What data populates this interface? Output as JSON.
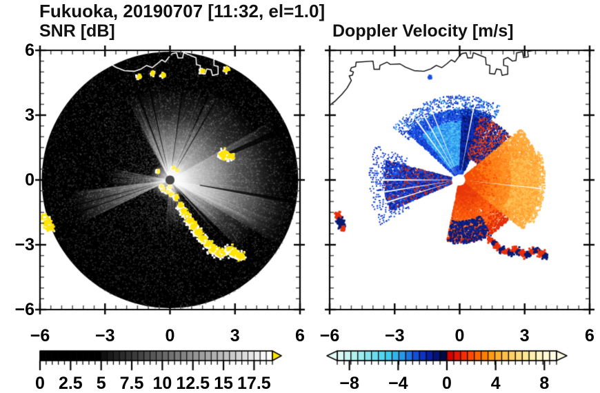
{
  "title": "Fukuoka, 20190707 [11:32, el=1.0]",
  "panels": {
    "snr": {
      "subtitle": "SNR [dB]"
    },
    "doppler": {
      "subtitle": "Doppler Velocity [m/s]"
    }
  },
  "coastline_xy": [
    [
      -6,
      3.45
    ],
    [
      -5.75,
      3.65
    ],
    [
      -5.45,
      3.95
    ],
    [
      -5.2,
      4.25
    ],
    [
      -5.0,
      4.6
    ],
    [
      -5.1,
      4.82
    ],
    [
      -4.95,
      4.85
    ],
    [
      -4.9,
      5.0
    ],
    [
      -5.05,
      5.05
    ],
    [
      -5.0,
      5.2
    ],
    [
      -4.8,
      5.25
    ],
    [
      -4.78,
      5.45
    ],
    [
      -4.0,
      5.5
    ],
    [
      -3.95,
      5.12
    ],
    [
      -3.7,
      5.12
    ],
    [
      -3.68,
      5.3
    ],
    [
      -3.35,
      5.45
    ],
    [
      -3.2,
      5.35
    ],
    [
      -2.75,
      5.37
    ],
    [
      -2.5,
      5.22
    ],
    [
      -2.1,
      5.06
    ],
    [
      -1.65,
      5.03
    ],
    [
      -1.33,
      5.14
    ],
    [
      -1.08,
      5.3
    ],
    [
      -0.82,
      5.2
    ],
    [
      -0.6,
      5.37
    ],
    [
      -0.38,
      5.56
    ],
    [
      -0.22,
      5.46
    ],
    [
      -0.05,
      5.69
    ],
    [
      0.1,
      5.85
    ],
    [
      0.3,
      5.89
    ],
    [
      0.37,
      5.65
    ],
    [
      0.58,
      5.65
    ],
    [
      0.63,
      5.89
    ],
    [
      0.85,
      5.8
    ],
    [
      1.2,
      5.66
    ],
    [
      1.22,
      5.34
    ],
    [
      1.4,
      5.3
    ],
    [
      1.38,
      4.93
    ],
    [
      1.62,
      4.9
    ],
    [
      1.7,
      5.14
    ],
    [
      1.9,
      5.1
    ],
    [
      1.96,
      4.84
    ],
    [
      2.22,
      4.9
    ],
    [
      2.22,
      5.26
    ],
    [
      2.03,
      5.3
    ],
    [
      2.03,
      5.58
    ],
    [
      2.22,
      5.67
    ],
    [
      2.44,
      5.5
    ],
    [
      2.6,
      5.53
    ],
    [
      2.63,
      5.88
    ],
    [
      2.9,
      5.94
    ],
    [
      2.95,
      5.66
    ],
    [
      3.17,
      5.7
    ],
    [
      3.14,
      5.95
    ],
    [
      3.45,
      6.0
    ]
  ],
  "chart_data": [
    {
      "type": "heatmap",
      "name": "snr_ppi",
      "title": "SNR [dB]",
      "axis": {
        "xlim": [
          -6,
          6
        ],
        "ylim": [
          -6,
          6
        ],
        "x_tick_values": [
          -6,
          -3,
          0,
          3,
          6
        ],
        "x_tick_labels": [
          "−6",
          "−3",
          "0",
          "3",
          "6"
        ],
        "y_tick_values": [
          6,
          3,
          0,
          -3,
          -6
        ],
        "y_tick_labels": [
          "6",
          "3",
          "0",
          "−3",
          "−6"
        ],
        "minor_tick_step": 0.5,
        "grid": false
      },
      "scan": {
        "center": [
          0,
          0
        ],
        "radius": 5.92,
        "background": "#000000",
        "speckle_count": 15000
      },
      "colorbar": {
        "range": [
          0,
          19
        ],
        "cell_step": 0.5,
        "black_until": 5,
        "gray_start": 16,
        "gray_end": 255,
        "tick_label_values": [
          0,
          2.5,
          5,
          7.5,
          10,
          12.5,
          15,
          17.5
        ],
        "tick_labels": [
          "0",
          "2.5",
          "5",
          "7.5",
          "10",
          "12.5",
          "15",
          "17.5"
        ],
        "major_tick_every": 2.5,
        "overflow_arrow_color": "#ffe400"
      },
      "bright_sectors": [
        [
          -30,
          140,
          3.0,
          0.5
        ],
        [
          25,
          135,
          4.6,
          0.42
        ],
        [
          60,
          118,
          5.5,
          0.3
        ],
        [
          100,
          121,
          5.9,
          0.3
        ],
        [
          -28,
          24,
          4.3,
          0.36
        ],
        [
          244,
          263,
          4.6,
          0.5
        ],
        [
          263,
          281,
          2.8,
          0.28
        ],
        [
          152,
          186,
          2.3,
          0.26
        ]
      ],
      "beam_streaks": {
        "count": 260,
        "alpha": 0.1
      },
      "shadow_rays": [
        [
          -20.5,
          1.6,
          0.4,
          4.6
        ],
        [
          -12.8,
          1.1,
          0.4,
          4.8
        ],
        [
          8,
          0.9,
          0.5,
          4.2
        ],
        [
          66,
          3.0,
          2.9,
          5.92
        ],
        [
          100,
          1.8,
          1.4,
          5.92
        ],
        [
          137,
          2.2,
          0.5,
          5.92
        ],
        [
          30,
          1.0,
          0.6,
          4.0
        ],
        [
          250.5,
          0.7,
          0.3,
          4.6
        ],
        [
          255,
          0.7,
          0.3,
          4.6
        ]
      ],
      "clutter_color": "#ffe400",
      "clutter_fringe_color": "#ffffff",
      "clutter_blobs": [
        [
          -0.07,
          -0.52,
          0.09
        ],
        [
          0.1,
          -0.64,
          0.09
        ],
        [
          0.28,
          -0.8,
          0.1
        ],
        [
          0.0,
          -0.32,
          0.07
        ],
        [
          -0.32,
          -0.42,
          0.07
        ],
        [
          -0.53,
          0.4,
          0.06
        ],
        [
          0.17,
          0.55,
          0.06
        ],
        [
          0.33,
          0.44,
          0.06
        ],
        [
          -0.37,
          -0.29,
          0.06
        ],
        [
          0.5,
          -1.2,
          0.12
        ],
        [
          0.64,
          -1.44,
          0.14
        ],
        [
          0.8,
          -1.64,
          0.13
        ],
        [
          0.95,
          -1.9,
          0.17
        ],
        [
          1.1,
          -2.12,
          0.16
        ],
        [
          1.3,
          -2.42,
          0.19
        ],
        [
          1.55,
          -2.72,
          0.19
        ],
        [
          1.8,
          -2.98,
          0.18
        ],
        [
          2.05,
          -3.22,
          0.2
        ],
        [
          2.3,
          -3.38,
          0.19
        ],
        [
          2.55,
          -3.32,
          0.18
        ],
        [
          2.8,
          -3.22,
          0.19
        ],
        [
          3.0,
          -3.38,
          0.22
        ],
        [
          3.27,
          -3.52,
          0.19
        ],
        [
          2.52,
          1.18,
          0.24
        ],
        [
          2.82,
          1.1,
          0.13
        ],
        [
          -5.78,
          -1.75,
          0.19
        ],
        [
          -5.66,
          -2.0,
          0.21
        ],
        [
          -5.52,
          -2.22,
          0.16
        ],
        [
          -1.42,
          4.8,
          0.08
        ],
        [
          -0.78,
          4.95,
          0.08
        ],
        [
          -0.3,
          4.87,
          0.08
        ],
        [
          1.5,
          5.05,
          0.08
        ],
        [
          2.62,
          5.12,
          0.1
        ]
      ],
      "center_disk": {
        "radius": 0.21,
        "color": "#474747"
      },
      "coast_color": "#ffffff"
    },
    {
      "type": "heatmap",
      "name": "doppler_ppi",
      "title": "Doppler Velocity [m/s]",
      "axis": {
        "xlim": [
          -6,
          6
        ],
        "ylim": [
          -6,
          6
        ],
        "x_tick_values": [
          -6,
          -3,
          0,
          3,
          6
        ],
        "x_tick_labels": [
          "−6",
          "−3",
          "0",
          "3",
          "6"
        ],
        "y_tick_values": [
          6,
          3,
          0,
          -3,
          -6
        ],
        "y_tick_labels": [],
        "minor_tick_step": 0.5,
        "grid": false
      },
      "colorbar": {
        "range": [
          -9,
          9
        ],
        "cells": 32,
        "segment_colors": [
          "#dcf8f5",
          "#c8f4f1",
          "#b2f0ee",
          "#9cebee",
          "#84e4ee",
          "#6cddee",
          "#54d5ee",
          "#3ccdee",
          "#30b6ec",
          "#2698e8",
          "#1c74e2",
          "#1250d8",
          "#0a34c4",
          "#071fa2",
          "#041478",
          "#020a46",
          "#d40000",
          "#e81400",
          "#f62e00",
          "#ff4a00",
          "#ff6400",
          "#ff7e00",
          "#ff9812",
          "#ffae2e",
          "#ffc04a",
          "#ffcf64",
          "#ffdb7c",
          "#ffe694",
          "#ffeeac",
          "#fff4c2",
          "#fff8d4",
          "#fffbe4"
        ],
        "tick_label_values": [
          -8,
          -4,
          0,
          4,
          8
        ],
        "tick_labels": [
          "−8",
          "−4",
          "0",
          "4",
          "8"
        ],
        "arrow_left_color": "#e4fbf8",
        "arrow_right_color": "#fffce6"
      },
      "echo_regions": [
        {
          "az": [
            -48,
            24
          ],
          "r": [
            0.3,
            3.25
          ],
          "n": 5200,
          "beam": 0.75,
          "dot": 2.4,
          "colors": [
            "#1b50e4",
            "#1643d2",
            "#2968e8",
            "#0f35c8"
          ]
        },
        {
          "az": [
            -40,
            4
          ],
          "r": [
            0.7,
            2.7
          ],
          "n": 2600,
          "beam": 0.8,
          "dot": 2.2,
          "colors": [
            "#2f9cf0",
            "#45b4f2",
            "#2886ec",
            "#57c8f4"
          ]
        },
        {
          "az": [
            2,
            27
          ],
          "r": [
            0.5,
            3.3
          ],
          "n": 2200,
          "beam": 0.8,
          "dot": 2.4,
          "colors": [
            "#0a2ab0",
            "#061c86",
            "#0b1560",
            "#1136c8"
          ]
        },
        {
          "az": [
            -52,
            30
          ],
          "r": [
            3.0,
            3.9
          ],
          "n": 650,
          "beam": 1.2,
          "dot": 2.0,
          "colors": [
            "#1b50e4",
            "#0a2ab0",
            "#2e8fe8"
          ]
        },
        {
          "az": [
            18,
            50
          ],
          "r": [
            1.1,
            3.1
          ],
          "n": 1500,
          "beam": 1.0,
          "dot": 2.2,
          "colors": [
            "#0a1a70",
            "#d93012",
            "#0c2cb0",
            "#e84a20"
          ]
        },
        {
          "az": [
            50,
            128
          ],
          "r": [
            0.3,
            3.7
          ],
          "n": 7000,
          "beam": 0.7,
          "dot": 2.4,
          "ramp": true,
          "colors": [
            "#f2500a",
            "#ff7a14",
            "#ff9426",
            "#ffab3c"
          ]
        },
        {
          "az": [
            70,
            122
          ],
          "r": [
            2.4,
            3.95
          ],
          "n": 1700,
          "beam": 0.9,
          "dot": 2.2,
          "colors": [
            "#ffb646",
            "#ffc65c",
            "#ff9e2e"
          ]
        },
        {
          "az": [
            128,
            192
          ],
          "r": [
            0.3,
            2.9
          ],
          "n": 3200,
          "beam": 0.8,
          "dot": 2.4,
          "ramp": true,
          "colors": [
            "#e8380c",
            "#f24c0a",
            "#ff6410",
            "#e22e08"
          ]
        },
        {
          "az": [
            150,
            192
          ],
          "r": [
            1.9,
            2.95
          ],
          "n": 420,
          "beam": 1.4,
          "dot": 2.6,
          "colors": [
            "#0a1a70",
            "#0c2490"
          ]
        },
        {
          "az": [
            246,
            285
          ],
          "r": [
            0.4,
            3.5
          ],
          "n": 3000,
          "beam": 0.8,
          "dot": 2.4,
          "colors": [
            "#0c2bb0",
            "#1a50e8",
            "#0a1e8c",
            "#c83018"
          ]
        },
        {
          "az": [
            240,
            293
          ],
          "r": [
            2.6,
            4.2
          ],
          "n": 450,
          "beam": 1.5,
          "dot": 2.0,
          "colors": [
            "#1a50e8",
            "#0c2bb0"
          ]
        }
      ],
      "gap_rays": [
        [
          -36,
          1.3,
          0.3,
          3.4
        ],
        [
          -29,
          1.1,
          0.3,
          3.4
        ],
        [
          -22,
          0.9,
          0.3,
          3.4
        ],
        [
          11,
          1.0,
          0.3,
          3.4
        ],
        [
          96,
          0.8,
          0.3,
          3.8
        ],
        [
          253,
          1.2,
          0.4,
          3.6
        ],
        [
          261,
          1.0,
          0.4,
          3.6
        ],
        [
          270,
          1.2,
          0.4,
          3.6
        ]
      ],
      "spots": [
        {
          "x": -5.62,
          "y": -1.62,
          "s": 0.13,
          "c": "#e6300c"
        },
        {
          "x": -5.56,
          "y": -1.78,
          "s": 0.14,
          "c": "#e6300c"
        },
        {
          "x": -5.5,
          "y": -1.95,
          "s": 0.2,
          "c": "#0a1a70"
        },
        {
          "x": -5.44,
          "y": -2.12,
          "s": 0.16,
          "c": "#0a1a70"
        },
        {
          "x": -5.38,
          "y": -2.25,
          "s": 0.11,
          "c": "#e6300c"
        },
        {
          "x": -1.38,
          "y": 4.76,
          "s": 0.06,
          "c": "#1a50e8"
        }
      ],
      "coast_blobs": [
        [
          1.42,
          -2.78,
          0.15,
          "#e6300c"
        ],
        [
          1.58,
          -2.94,
          0.13,
          "#0a1a70"
        ],
        [
          1.75,
          -3.1,
          0.15,
          "#e6300c"
        ],
        [
          1.95,
          -3.24,
          0.16,
          "#0a1a70"
        ],
        [
          2.15,
          -3.32,
          0.15,
          "#e6300c"
        ],
        [
          2.35,
          -3.36,
          0.15,
          "#0a1a70"
        ],
        [
          2.55,
          -3.24,
          0.15,
          "#e6300c"
        ],
        [
          2.75,
          -3.32,
          0.16,
          "#0a1a70"
        ],
        [
          2.95,
          -3.42,
          0.18,
          "#e6300c"
        ],
        [
          3.15,
          -3.46,
          0.15,
          "#0a1a70"
        ],
        [
          3.38,
          -3.3,
          0.16,
          "#e6300c"
        ],
        [
          3.58,
          -3.24,
          0.14,
          "#0a1a70"
        ],
        [
          3.78,
          -3.4,
          0.18,
          "#e6300c"
        ],
        [
          3.94,
          -3.54,
          0.14,
          "#0a1a70"
        ]
      ],
      "center_hole": {
        "radius": 0.21,
        "color": "#ffffff"
      },
      "coast_color": "#000000"
    }
  ]
}
